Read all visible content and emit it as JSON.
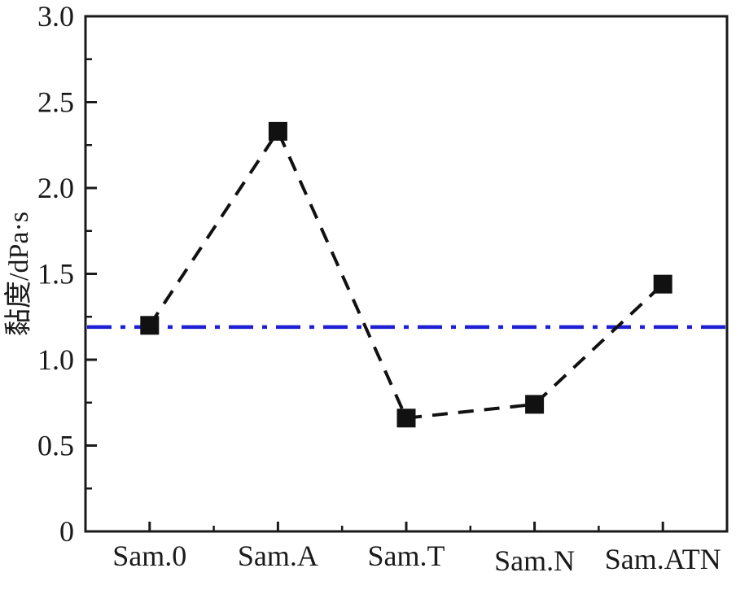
{
  "chart_data": {
    "type": "line",
    "title": "",
    "categories": [
      "Sam.0",
      "Sam.A",
      "Sam.T",
      "Sam.N",
      "Sam.ATN"
    ],
    "series": [
      {
        "name": "viscosity",
        "values": [
          1.2,
          2.33,
          0.66,
          0.74,
          1.44
        ]
      }
    ],
    "reference_line": {
      "value": 1.19,
      "style": "dash-dot",
      "color": "#1e1ed2"
    },
    "xlabel": "",
    "ylabel": "黏度/dPa·s",
    "ylim": [
      0,
      3.0
    ],
    "ytick_step": 0.5,
    "ytick_minor_step": 0.25,
    "ytick_labels": [
      "0",
      "0.5",
      "1.0",
      "1.5",
      "2.0",
      "2.5",
      "3.0"
    ],
    "grid": false,
    "legend": false,
    "frame": "full-box",
    "line_color": "#111111",
    "line_style": "dashed",
    "marker": "square",
    "marker_color": "#111111",
    "axis_color": "#1a1a1a"
  }
}
